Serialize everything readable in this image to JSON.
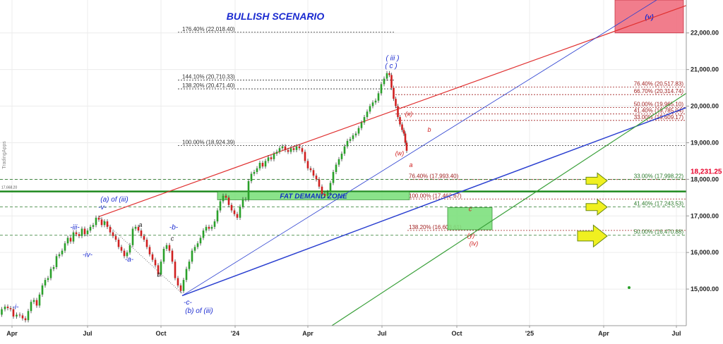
{
  "app": {
    "watermark": "TradingApps"
  },
  "chart_data": {
    "type": "line",
    "title": "BULLISH SCENARIO",
    "x_ticks": [
      "Apr",
      "Jul",
      "Oct",
      "'24",
      "Apr",
      "Jul",
      "Oct",
      "'25",
      "Apr",
      "Jul"
    ],
    "y_ticks": [
      15000,
      16000,
      17000,
      18000,
      19000,
      20000,
      21000,
      22000
    ],
    "y_tick_labels": [
      "15,000.00",
      "16,000.00",
      "17,000.00",
      "18,000.00",
      "19,000.00",
      "20,000.00",
      "21,000.00",
      "22,000.00"
    ],
    "ylim": [
      14000,
      22900
    ],
    "current_price": {
      "label": "18,231.25",
      "value": 18231.25,
      "color": "#e8002a"
    },
    "support_line_label": "17,668.20",
    "series": [
      {
        "values": [
          [
            0,
            14300
          ],
          [
            5,
            14450
          ],
          [
            9,
            14520
          ],
          [
            13,
            14480
          ],
          [
            17,
            14450
          ],
          [
            21,
            14250
          ],
          [
            26,
            14300
          ],
          [
            30,
            14280
          ],
          [
            34,
            14200
          ],
          [
            38,
            14150
          ],
          [
            42,
            14400
          ],
          [
            46,
            14650
          ],
          [
            50,
            14700
          ],
          [
            54,
            14550
          ],
          [
            58,
            14850
          ],
          [
            62,
            15100
          ],
          [
            66,
            15250
          ],
          [
            70,
            15300
          ],
          [
            74,
            15550
          ],
          [
            78,
            15600
          ],
          [
            82,
            15900
          ],
          [
            86,
            15950
          ],
          [
            90,
            16050
          ],
          [
            94,
            16250
          ],
          [
            98,
            16400
          ],
          [
            102,
            16300
          ],
          [
            106,
            16550
          ],
          [
            110,
            16500
          ],
          [
            114,
            16450
          ],
          [
            118,
            16650
          ],
          [
            122,
            16500
          ],
          [
            126,
            16600
          ],
          [
            130,
            16700
          ],
          [
            134,
            16750
          ],
          [
            138,
            16950
          ],
          [
            142,
            16900
          ],
          [
            146,
            16750
          ],
          [
            150,
            16850
          ],
          [
            154,
            16700
          ],
          [
            158,
            16550
          ],
          [
            162,
            16450
          ],
          [
            166,
            16350
          ],
          [
            170,
            16150
          ],
          [
            174,
            16050
          ],
          [
            178,
            15900
          ],
          [
            182,
            16000
          ],
          [
            186,
            16200
          ],
          [
            190,
            16650
          ],
          [
            194,
            16700
          ],
          [
            198,
            16600
          ],
          [
            202,
            16450
          ],
          [
            206,
            16350
          ],
          [
            210,
            16150
          ],
          [
            214,
            15950
          ],
          [
            218,
            15800
          ],
          [
            222,
            15650
          ],
          [
            226,
            15400
          ],
          [
            230,
            15750
          ],
          [
            234,
            16100
          ],
          [
            238,
            16200
          ],
          [
            242,
            16050
          ],
          [
            246,
            15750
          ],
          [
            250,
            15300
          ],
          [
            254,
            15100
          ],
          [
            258,
            14950
          ],
          [
            262,
            15250
          ],
          [
            266,
            15550
          ],
          [
            270,
            15750
          ],
          [
            274,
            16050
          ],
          [
            278,
            16150
          ],
          [
            282,
            16250
          ],
          [
            286,
            16400
          ],
          [
            290,
            16600
          ],
          [
            294,
            16700
          ],
          [
            298,
            16650
          ],
          [
            302,
            16700
          ],
          [
            306,
            16850
          ],
          [
            310,
            17150
          ],
          [
            314,
            17400
          ],
          [
            318,
            17550
          ],
          [
            322,
            17500
          ],
          [
            326,
            17300
          ],
          [
            330,
            17150
          ],
          [
            334,
            17050
          ],
          [
            338,
            16950
          ],
          [
            342,
            17250
          ],
          [
            346,
            17450
          ],
          [
            350,
            17450
          ],
          [
            354,
            17950
          ],
          [
            358,
            18150
          ],
          [
            362,
            18200
          ],
          [
            366,
            18300
          ],
          [
            370,
            18450
          ],
          [
            374,
            18350
          ],
          [
            378,
            18500
          ],
          [
            382,
            18600
          ],
          [
            386,
            18550
          ],
          [
            390,
            18700
          ],
          [
            394,
            18750
          ],
          [
            398,
            18850
          ],
          [
            402,
            18900
          ],
          [
            406,
            18800
          ],
          [
            410,
            18750
          ],
          [
            414,
            18850
          ],
          [
            418,
            18800
          ],
          [
            422,
            18900
          ],
          [
            426,
            18850
          ],
          [
            430,
            18750
          ],
          [
            434,
            18500
          ],
          [
            438,
            18300
          ],
          [
            442,
            18250
          ],
          [
            446,
            18100
          ],
          [
            450,
            18000
          ],
          [
            454,
            17800
          ],
          [
            458,
            17600
          ],
          [
            462,
            17550
          ],
          [
            466,
            17650
          ],
          [
            470,
            17900
          ],
          [
            474,
            18200
          ],
          [
            478,
            18400
          ],
          [
            482,
            18550
          ],
          [
            486,
            18700
          ],
          [
            490,
            18900
          ],
          [
            494,
            19050
          ],
          [
            498,
            19100
          ],
          [
            502,
            19200
          ],
          [
            506,
            19250
          ],
          [
            510,
            19400
          ],
          [
            514,
            19550
          ],
          [
            518,
            19700
          ],
          [
            522,
            19850
          ],
          [
            526,
            20000
          ],
          [
            530,
            20100
          ],
          [
            534,
            20150
          ],
          [
            538,
            20350
          ],
          [
            542,
            20600
          ],
          [
            546,
            20750
          ],
          [
            550,
            20900
          ],
          [
            553,
            20850
          ],
          [
            556,
            20500
          ],
          [
            559,
            20200
          ],
          [
            562,
            20000
          ],
          [
            565,
            19700
          ],
          [
            568,
            19500
          ],
          [
            571,
            19350
          ],
          [
            573,
            19250
          ],
          [
            575,
            19000
          ],
          [
            577,
            18780
          ]
        ]
      }
    ],
    "fib_levels": [
      {
        "label": "176.40% (22,018.40)",
        "value": 22018.4,
        "color": "#333333",
        "dash": "2,2",
        "text_x": 258,
        "text_anchor": "start",
        "x1": 252,
        "x2": 560
      },
      {
        "label": "144.10% (20,710.33)",
        "value": 20710.33,
        "color": "#333333",
        "dash": "2,2",
        "text_x": 258,
        "text_anchor": "start",
        "x1": 252,
        "x2": 560
      },
      {
        "label": "138.20% (20,471.40)",
        "value": 20471.4,
        "color": "#333333",
        "dash": "2,2",
        "text_x": 258,
        "text_anchor": "start",
        "x1": 252,
        "x2": 560
      },
      {
        "label": "100.00% (18,924.39)",
        "value": 18924.39,
        "color": "#333333",
        "dash": "2,2",
        "text_x": 258,
        "text_anchor": "start",
        "x1": 252,
        "x2": 972
      },
      {
        "label": "76.40% (20,517.83)",
        "value": 20517.83,
        "color": "#a02020",
        "dash": "2,2",
        "text_x": 968,
        "text_anchor": "end",
        "x1": 560,
        "x2": 972
      },
      {
        "label": "66.70% (20,314.74)",
        "value": 20314.74,
        "color": "#a02020",
        "dash": "2,2",
        "text_x": 968,
        "text_anchor": "end",
        "x1": 560,
        "x2": 972
      },
      {
        "label": "50.00% (19,965.10)",
        "value": 19965.1,
        "color": "#a02020",
        "dash": "2,2",
        "text_x": 968,
        "text_anchor": "end",
        "x1": 560,
        "x2": 972
      },
      {
        "label": "41.40% (19,785.04)",
        "value": 19785.04,
        "color": "#a02020",
        "dash": "2,2",
        "text_x": 968,
        "text_anchor": "end",
        "x1": 560,
        "x2": 972
      },
      {
        "label": "33.00% (19,609.17)",
        "value": 19609.17,
        "color": "#a02020",
        "dash": "2,2",
        "text_x": 968,
        "text_anchor": "end",
        "x1": 560,
        "x2": 972
      },
      {
        "label": "76.40% (17,993.40)",
        "value": 17993.4,
        "color": "#a02020",
        "dash": "2,2",
        "text_x": 579,
        "text_anchor": "start",
        "x1": 577,
        "x2": 972
      },
      {
        "label": "100.00% (17,462.67)",
        "value": 17462.67,
        "color": "#a02020",
        "dash": "2,2",
        "text_x": 579,
        "text_anchor": "start",
        "x1": 577,
        "x2": 972
      },
      {
        "label": "138.20% (16,603.61)",
        "value": 16603.61,
        "color": "#a02020",
        "dash": "2,2",
        "text_x": 579,
        "text_anchor": "start",
        "x1": 577,
        "x2": 972
      },
      {
        "label": "33.00% (17,998.22)",
        "value": 17998.22,
        "color": "#2a7a2a",
        "dash": "4,3",
        "text_x": 968,
        "text_anchor": "end",
        "x1": 0,
        "x2": 972
      },
      {
        "label": "41.40% (17,243.53)",
        "value": 17243.53,
        "color": "#2a7a2a",
        "dash": "4,3",
        "text_x": 968,
        "text_anchor": "end",
        "x1": 0,
        "x2": 972
      },
      {
        "label": "50.00% (16,470.88)",
        "value": 16470.88,
        "color": "#2a7a2a",
        "dash": "4,3",
        "text_x": 968,
        "text_anchor": "end",
        "x1": 0,
        "x2": 972
      }
    ],
    "trendlines": [
      {
        "color": "#e03030",
        "width": 1.2,
        "x1": 140,
        "y1": 16980,
        "x2": 972,
        "y2": 22750
      },
      {
        "color": "#2a3fd0",
        "width": 1.5,
        "x1": 258,
        "y1": 14820,
        "x2": 972,
        "y2": 19960
      },
      {
        "color": "#2a3fd0",
        "width": 0.8,
        "x1": 258,
        "y1": 14820,
        "x2": 930,
        "y2": 22900
      },
      {
        "color": "#3aa03a",
        "width": 1.2,
        "x1": 470,
        "y1": 14000,
        "x2": 972,
        "y2": 20350
      }
    ],
    "zones": [
      {
        "label": "FAT DEMAND ZONE",
        "x1": 308,
        "x2": 580,
        "y_top": 17660,
        "y_bot": 17440,
        "fill": "#7ee07e",
        "stroke": "#2a8a2a",
        "text_color": "#1030c0"
      },
      {
        "label": "",
        "x1": 634,
        "x2": 697,
        "y_top": 17230,
        "y_bot": 16620,
        "fill": "#7ee07e",
        "stroke": "#2a8a2a",
        "text_color": "#000000"
      },
      {
        "label": "(v)",
        "x1": 871,
        "x2": 968,
        "y_top": 22900,
        "y_bot": 22000,
        "fill": "#f07080",
        "stroke": "#c02030",
        "text_color": "#1a2ad0"
      }
    ],
    "annotations": [
      {
        "text": "-i-",
        "x": 22,
        "value": 14450,
        "color": "#1a2ad0",
        "size": 10
      },
      {
        "text": "-iii-",
        "x": 106,
        "value": 16630,
        "color": "#1a2ad0",
        "size": 10
      },
      {
        "text": "-iv-",
        "x": 124,
        "value": 15880,
        "color": "#1a2ad0",
        "size": 10
      },
      {
        "text": "(a) of (iii)",
        "x": 162,
        "value": 17390,
        "color": "#1a2ad0",
        "size": 10
      },
      {
        "text": "-v-",
        "x": 145,
        "value": 17180,
        "color": "#1a2ad0",
        "size": 10
      },
      {
        "text": "a",
        "x": 199,
        "value": 16700,
        "color": "#222222",
        "size": 9
      },
      {
        "text": "-a-",
        "x": 183,
        "value": 15750,
        "color": "#1a2ad0",
        "size": 10
      },
      {
        "text": "b",
        "x": 225,
        "value": 15340,
        "color": "#222222",
        "size": 9
      },
      {
        "text": "-b-",
        "x": 246,
        "value": 16630,
        "color": "#1a2ad0",
        "size": 10
      },
      {
        "text": "c",
        "x": 244,
        "value": 16320,
        "color": "#222222",
        "size": 9
      },
      {
        "text": "-c-",
        "x": 266,
        "value": 14580,
        "color": "#1a2ad0",
        "size": 10
      },
      {
        "text": "(b) of (iii)",
        "x": 282,
        "value": 14350,
        "color": "#1a2ad0",
        "size": 10
      },
      {
        "text": "( iii )",
        "x": 556,
        "value": 21250,
        "color": "#1a2ad0",
        "size": 10
      },
      {
        "text": "( c )",
        "x": 554,
        "value": 21040,
        "color": "#1a2ad0",
        "size": 10
      },
      {
        "text": "(x)",
        "x": 579,
        "value": 19730,
        "color": "#d02020",
        "size": 9
      },
      {
        "text": "b",
        "x": 608,
        "value": 19300,
        "color": "#d02020",
        "size": 9
      },
      {
        "text": "(w)",
        "x": 566,
        "value": 18650,
        "color": "#d02020",
        "size": 9
      },
      {
        "text": "a",
        "x": 582,
        "value": 18330,
        "color": "#d02020",
        "size": 9
      },
      {
        "text": "c",
        "x": 666,
        "value": 17130,
        "color": "#d02020",
        "size": 9
      },
      {
        "text": "(y)",
        "x": 667,
        "value": 16410,
        "color": "#d02020",
        "size": 9
      },
      {
        "text": "(iv)",
        "x": 671,
        "value": 16190,
        "color": "#d02020",
        "size": 9
      }
    ],
    "arrows": [
      {
        "x": 830,
        "value": 17960,
        "scale": 1.0
      },
      {
        "x": 830,
        "value": 17240,
        "scale": 1.0
      },
      {
        "x": 818,
        "value": 16450,
        "scale": 1.4
      }
    ],
    "marker_dot": {
      "x": 891,
      "value": 15040,
      "color": "#2aa02a"
    }
  }
}
